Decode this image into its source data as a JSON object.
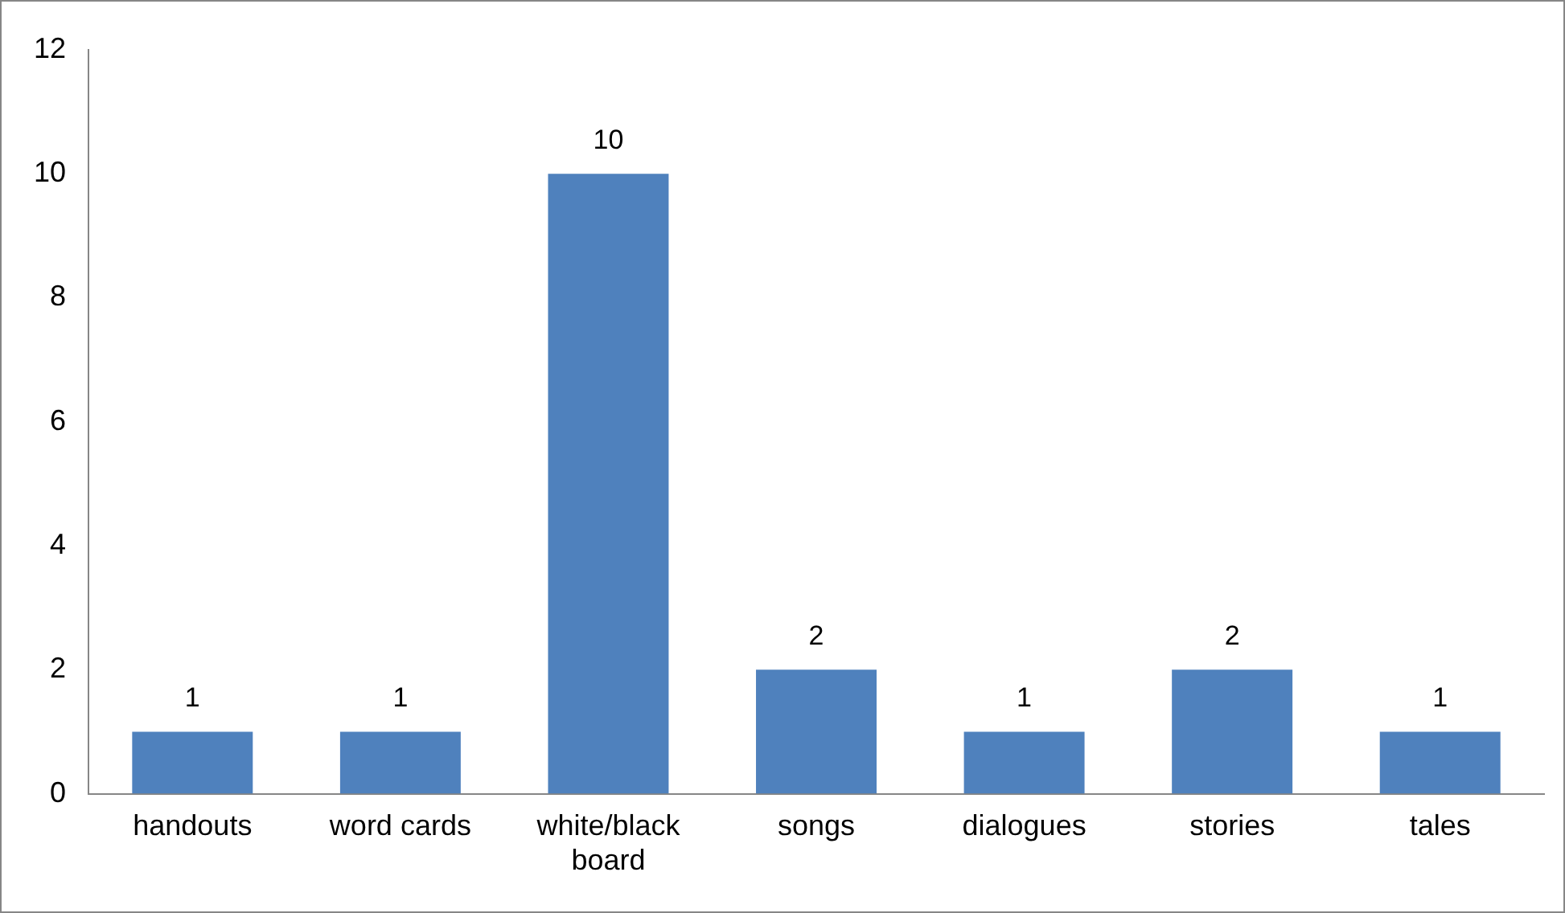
{
  "chart_data": {
    "type": "bar",
    "categories": [
      "handouts",
      "word cards",
      "white/black board",
      "songs",
      "dialogues",
      "stories",
      "tales"
    ],
    "values": [
      1,
      1,
      10,
      2,
      1,
      2,
      1
    ],
    "color": "#4f81bd",
    "ylim": [
      0,
      12
    ],
    "yticks": [
      0,
      2,
      4,
      6,
      8,
      10,
      12
    ],
    "grid": false,
    "legend": false,
    "data_labels": true
  }
}
